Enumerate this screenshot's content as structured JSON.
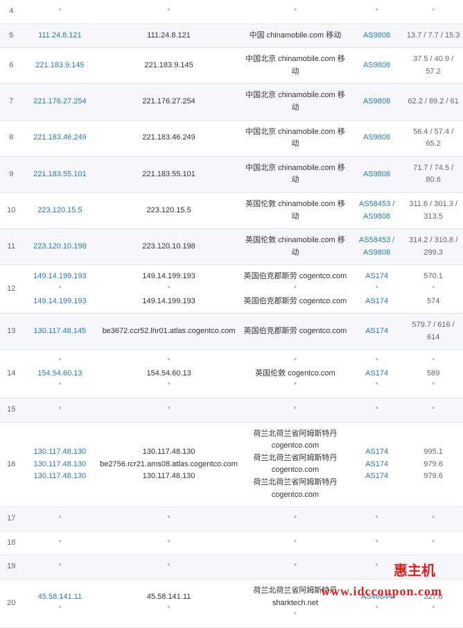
{
  "watermark_text": "惠主机",
  "watermark_url": "www.idccoupon.com",
  "rows": [
    {
      "hop": "4",
      "ip": [
        "*"
      ],
      "resolved": [
        "*"
      ],
      "location": [
        "*"
      ],
      "asn": [
        "*"
      ],
      "latency": [
        "*"
      ]
    },
    {
      "hop": "5",
      "ip": [
        "111.24.8.121"
      ],
      "resolved": [
        "111.24.8.121"
      ],
      "location": [
        "中国 chinamobile.com 移动"
      ],
      "asn": [
        "AS9808"
      ],
      "latency": [
        "13.7 / 7.7 / 15.3"
      ]
    },
    {
      "hop": "6",
      "ip": [
        "221.183.9.145"
      ],
      "resolved": [
        "221.183.9.145"
      ],
      "location": [
        "中国北京 chinamobile.com 移动"
      ],
      "asn": [
        "AS9808"
      ],
      "latency": [
        "37.5 / 40.9 / 57.2"
      ]
    },
    {
      "hop": "7",
      "ip": [
        "221.176.27.254"
      ],
      "resolved": [
        "221.176.27.254"
      ],
      "location": [
        "中国北京 chinamobile.com 移动"
      ],
      "asn": [
        "AS9808"
      ],
      "latency": [
        "62.2 / 89.2 / 61"
      ]
    },
    {
      "hop": "8",
      "ip": [
        "221.183.46.249"
      ],
      "resolved": [
        "221.183.46.249"
      ],
      "location": [
        "中国北京 chinamobile.com 移动"
      ],
      "asn": [
        "AS9808"
      ],
      "latency": [
        "56.4 / 57.4 / 65.2"
      ]
    },
    {
      "hop": "9",
      "ip": [
        "221.183.55.101"
      ],
      "resolved": [
        "221.183.55.101"
      ],
      "location": [
        "中国北京 chinamobile.com 移动"
      ],
      "asn": [
        "AS9808"
      ],
      "latency": [
        "71.7 / 74.5 / 80.6"
      ]
    },
    {
      "hop": "10",
      "ip": [
        "223.120.15.5"
      ],
      "resolved": [
        "223.120.15.5"
      ],
      "location": [
        "英国伦敦 chinamobile.com 移动"
      ],
      "asn": [
        "AS58453 / AS9808"
      ],
      "latency": [
        "311.6 / 301.3 / 313.5"
      ]
    },
    {
      "hop": "11",
      "ip": [
        "223.120.10.198"
      ],
      "resolved": [
        "223.120.10.198"
      ],
      "location": [
        "英国伦敦 chinamobile.com 移动"
      ],
      "asn": [
        "AS58453 / AS9808"
      ],
      "latency": [
        "314.2 / 310.8 / 299.3"
      ]
    },
    {
      "hop": "12",
      "ip": [
        "149.14.199.193",
        "*",
        "149.14.199.193"
      ],
      "resolved": [
        "149.14.199.193",
        "*",
        "149.14.199.193"
      ],
      "location": [
        "英国伯克郡斯劳 cogentco.com",
        "*",
        "英国伯克郡斯劳 cogentco.com"
      ],
      "asn": [
        "AS174",
        "*",
        "AS174"
      ],
      "latency": [
        "570.1",
        "*",
        "574"
      ]
    },
    {
      "hop": "13",
      "ip": [
        "130.117.48.145"
      ],
      "resolved": [
        "be3672.ccr52.lhr01.atlas.cogentco.com"
      ],
      "location": [
        "英国伯克郡斯劳 cogentco.com"
      ],
      "asn": [
        "AS174"
      ],
      "latency": [
        "579.7 / 616 / 614"
      ]
    },
    {
      "hop": "14",
      "ip": [
        "*",
        "154.54.60.13",
        "*"
      ],
      "resolved": [
        "*",
        "154.54.60.13",
        "*"
      ],
      "location": [
        "*",
        "英国伦敦 cogentco.com",
        "*"
      ],
      "asn": [
        "*",
        "AS174",
        "*"
      ],
      "latency": [
        "*",
        "589",
        "*"
      ]
    },
    {
      "hop": "15",
      "ip": [
        "*"
      ],
      "resolved": [
        "*"
      ],
      "location": [
        "*"
      ],
      "asn": [
        "*"
      ],
      "latency": [
        "*"
      ]
    },
    {
      "hop": "16",
      "ip": [
        "130.117.48.130",
        "130.117.48.130",
        "130.117.48.130"
      ],
      "resolved": [
        "130.117.48.130",
        "be2756.rcr21.ams08.atlas.cogentco.com",
        "130.117.48.130"
      ],
      "location": [
        "荷兰北荷兰省阿姆斯特丹 cogentco.com",
        "荷兰北荷兰省阿姆斯特丹 cogentco.com",
        "荷兰北荷兰省阿姆斯特丹 cogentco.com"
      ],
      "asn": [
        "AS174",
        "AS174",
        "AS174"
      ],
      "latency": [
        "995.1",
        "979.6",
        "979.6"
      ]
    },
    {
      "hop": "17",
      "ip": [
        "*"
      ],
      "resolved": [
        "*"
      ],
      "location": [
        "*"
      ],
      "asn": [
        "*"
      ],
      "latency": [
        "*"
      ]
    },
    {
      "hop": "18",
      "ip": [
        "*"
      ],
      "resolved": [
        "*"
      ],
      "location": [
        "*"
      ],
      "asn": [
        "*"
      ],
      "latency": [
        "*"
      ]
    },
    {
      "hop": "19",
      "ip": [
        "*"
      ],
      "resolved": [
        "*"
      ],
      "location": [
        "*"
      ],
      "asn": [
        "*"
      ],
      "latency": [
        "*"
      ]
    },
    {
      "hop": "20",
      "ip": [
        "45.58.141.11",
        "*"
      ],
      "resolved": [
        "45.58.141.11",
        "*"
      ],
      "location": [
        "荷兰北荷兰省阿姆斯特丹 sharktech.net",
        "*"
      ],
      "asn": [
        "AS46844",
        "*"
      ],
      "latency": [
        "327.6",
        "*"
      ]
    }
  ]
}
